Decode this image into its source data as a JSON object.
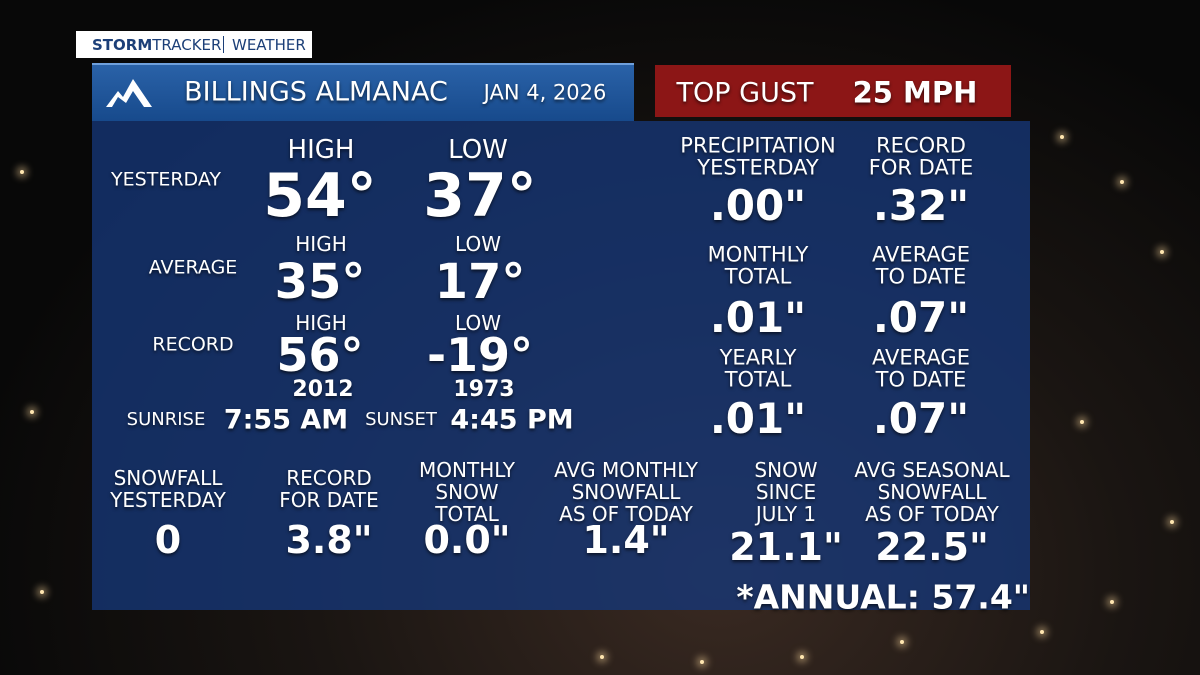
{
  "brand": {
    "storm": "STORM",
    "tracker": "TRACKER",
    "section": "WEATHER"
  },
  "header": {
    "title": "BILLINGS ALMANAC",
    "date": "JAN 4, 2026"
  },
  "gust": {
    "label": "TOP GUST",
    "value": "25 MPH"
  },
  "temperatures": [
    {
      "label": "YESTERDAY",
      "high_label": "HIGH",
      "high": "54°",
      "low_label": "LOW",
      "low": "37°"
    },
    {
      "label": "AVERAGE",
      "high_label": "HIGH",
      "high": "35°",
      "low_label": "LOW",
      "low": "17°"
    },
    {
      "label": "RECORD",
      "high_label": "HIGH",
      "high": "56°",
      "low_label": "LOW",
      "low": "-19°",
      "high_year": "2012",
      "low_year": "1973"
    }
  ],
  "sun": {
    "sunrise_label": "SUNRISE",
    "sunrise": "7:55 AM",
    "sunset_label": "SUNSET",
    "sunset": "4:45 PM"
  },
  "precipitation": [
    {
      "label": [
        "PRECIPITATION",
        "YESTERDAY"
      ],
      "value": ".00\""
    },
    {
      "label": [
        "RECORD",
        "FOR DATE"
      ],
      "value": ".32\""
    },
    {
      "label": [
        "MONTHLY",
        "TOTAL"
      ],
      "value": ".01\""
    },
    {
      "label": [
        "AVERAGE",
        "TO DATE"
      ],
      "value": ".07\""
    },
    {
      "label": [
        "YEARLY",
        "TOTAL"
      ],
      "value": ".01\""
    },
    {
      "label": [
        "AVERAGE",
        "TO DATE"
      ],
      "value": ".07\""
    }
  ],
  "snow": [
    {
      "label": [
        "SNOWFALL",
        "YESTERDAY"
      ],
      "value": "0"
    },
    {
      "label": [
        "RECORD",
        "FOR DATE"
      ],
      "value": "3.8\""
    },
    {
      "label": [
        "MONTHLY",
        "SNOW",
        "TOTAL"
      ],
      "value": "0.0\""
    },
    {
      "label": [
        "AVG MONTHLY",
        "SNOWFALL",
        "AS OF TODAY"
      ],
      "value": "1.4\""
    },
    {
      "label": [
        "SNOW",
        "SINCE",
        "JULY 1"
      ],
      "value": "21.1\""
    },
    {
      "label": [
        "AVG SEASONAL",
        "SNOWFALL",
        "AS OF TODAY"
      ],
      "value": "22.5\""
    }
  ],
  "annual": "*ANNUAL: 57.4\""
}
